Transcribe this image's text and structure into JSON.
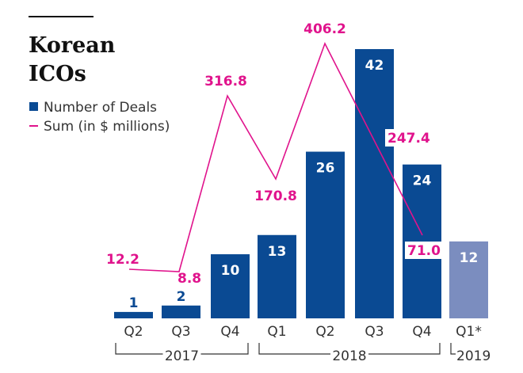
{
  "chart_data": {
    "type": "bar",
    "title": "Korean ICOs",
    "title_lines": [
      "Korean",
      "ICOs"
    ],
    "legend": [
      {
        "name": "Number of Deals",
        "marker": "square",
        "color": "#0a4a93"
      },
      {
        "name": "Sum (in $ millions)",
        "marker": "line",
        "color": "#e0138c"
      }
    ],
    "legend_position": "top-left",
    "categories": [
      "Q2",
      "Q3",
      "Q4",
      "Q1",
      "Q2",
      "Q3",
      "Q4",
      "Q1*"
    ],
    "groups": [
      {
        "label": "2017",
        "start": 0,
        "end": 2
      },
      {
        "label": "2018",
        "start": 3,
        "end": 6
      },
      {
        "label": "2019",
        "start": 7,
        "end": 7
      }
    ],
    "series": [
      {
        "name": "Number of Deals",
        "type": "bar",
        "values": [
          1,
          2,
          10,
          13,
          26,
          42,
          24,
          12
        ],
        "labels": [
          "1",
          "2",
          "10",
          "13",
          "26",
          "42",
          "24",
          "12"
        ],
        "color": "#0a4a93",
        "highlight_color": "#7b8dbf",
        "highlight_index": 7
      },
      {
        "name": "Sum (in $ millions)",
        "type": "line",
        "values": [
          12.2,
          8.8,
          316.8,
          170.8,
          406.2,
          247.4,
          71.0
        ],
        "labels": [
          "12.2",
          "8.8",
          "316.8",
          "170.8",
          "406.2",
          "247.4",
          "71.0"
        ],
        "color": "#e0138c"
      }
    ],
    "xlabel": "",
    "ylabel": "",
    "grid": false,
    "axes_visible": false
  }
}
